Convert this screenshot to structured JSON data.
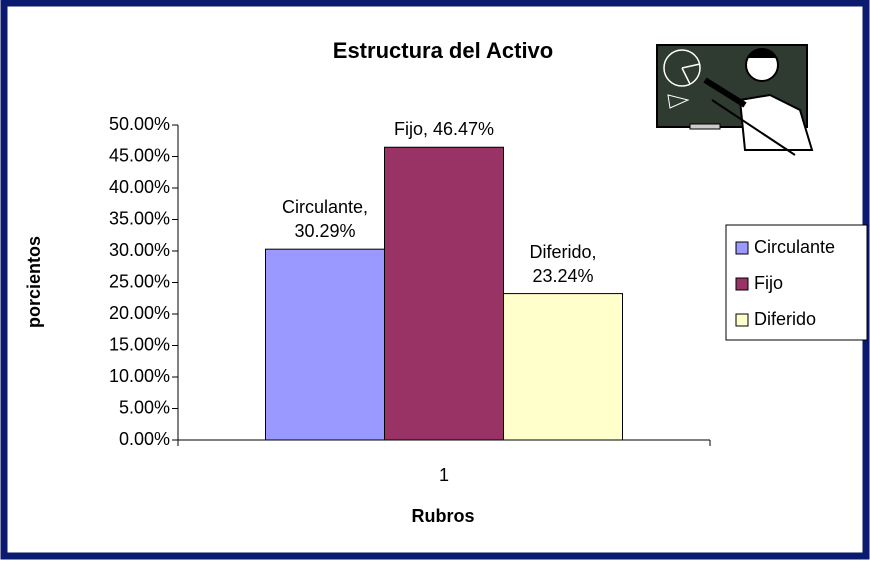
{
  "chart_data": {
    "type": "bar",
    "title": "Estructura del Activo",
    "x_label": "Rubros",
    "y_label": "porcientos",
    "categories": [
      "1"
    ],
    "series": [
      {
        "name": "Circulante",
        "color": "#9999ff",
        "values": [
          30.29
        ],
        "value_labels": [
          "Circulante, 30.29%"
        ]
      },
      {
        "name": "Fijo",
        "color": "#993366",
        "values": [
          46.47
        ],
        "value_labels": [
          "Fijo, 46.47%"
        ]
      },
      {
        "name": "Diferido",
        "color": "#ffffcc",
        "values": [
          23.24
        ],
        "value_labels": [
          "Diferido, 23.24%"
        ]
      }
    ],
    "ylim": [
      0,
      50
    ],
    "yticks": [
      {
        "value": 0,
        "label": "0.00%"
      },
      {
        "value": 5,
        "label": "5.00%"
      },
      {
        "value": 10,
        "label": "10.00%"
      },
      {
        "value": 15,
        "label": "15.00%"
      },
      {
        "value": 20,
        "label": "20.00%"
      },
      {
        "value": 25,
        "label": "25.00%"
      },
      {
        "value": 30,
        "label": "30.00%"
      },
      {
        "value": 35,
        "label": "35.00%"
      },
      {
        "value": 40,
        "label": "40.00%"
      },
      {
        "value": 45,
        "label": "45.00%"
      },
      {
        "value": 50,
        "label": "50.00%"
      }
    ],
    "grid": false,
    "legend": "right"
  }
}
